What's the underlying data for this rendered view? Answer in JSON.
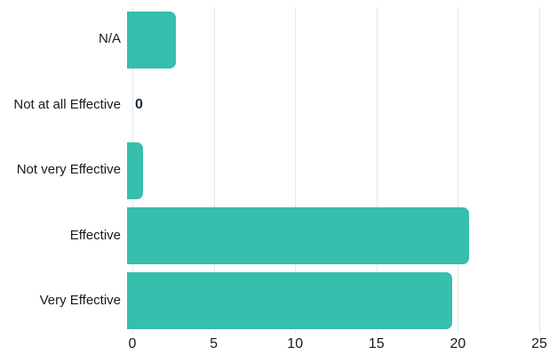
{
  "chart_data": {
    "type": "bar",
    "orientation": "horizontal",
    "title": "",
    "xlabel": "",
    "ylabel": "",
    "categories": [
      "N/A",
      "Not at all Effective",
      "Not very Effective",
      "Effective",
      "Very Effective"
    ],
    "values": [
      3,
      0,
      1,
      21,
      20
    ],
    "zero_value_label": "0",
    "x_ticks": [
      0,
      5,
      10,
      15,
      20,
      25
    ],
    "xlim": [
      0,
      25
    ],
    "grid": true,
    "legend": false,
    "colors": {
      "bar": "#35bfac",
      "gridline": "#e7e7e7",
      "text": "#1a1a1a",
      "zero_label_text": "#1b2a3b",
      "background": "#ffffff"
    }
  },
  "layout_note": ""
}
